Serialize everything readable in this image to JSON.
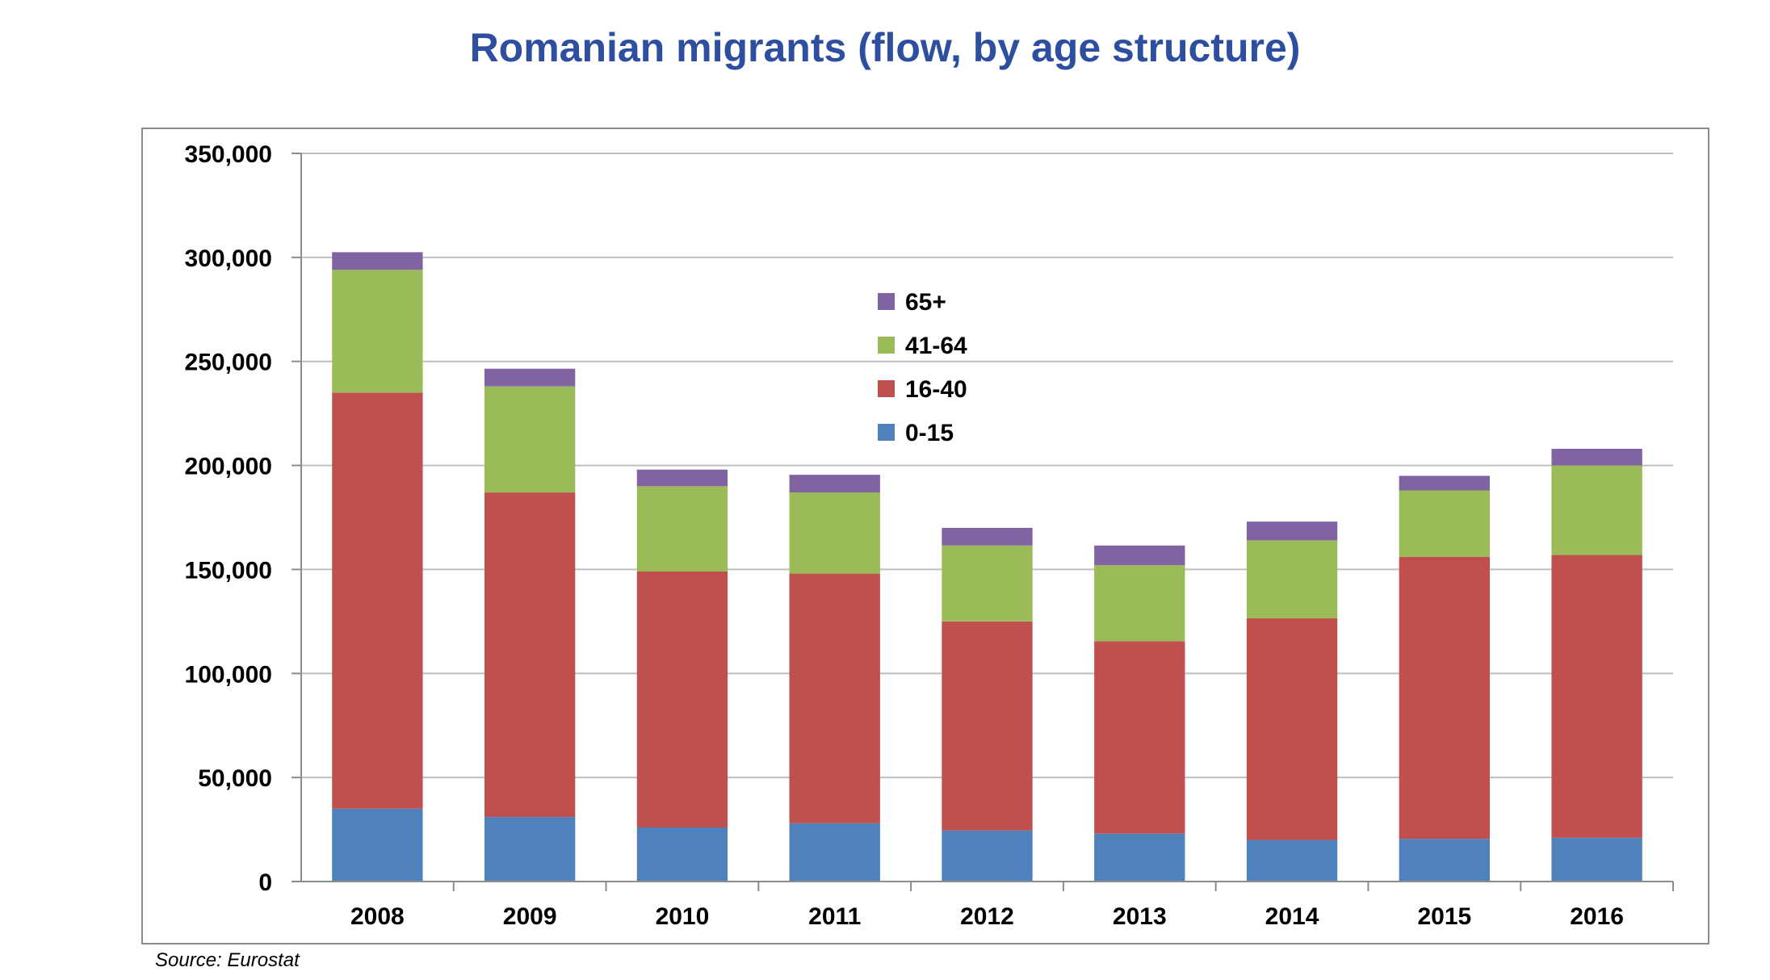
{
  "title": "Romanian migrants (flow, by age structure)",
  "source": "Source: Eurostat",
  "colors": {
    "title": "#2E4FA0",
    "0-15": "#4F81BD",
    "16-40": "#C0504D",
    "41-64": "#9BBB59",
    "65+": "#8064A2",
    "grid": "#BFBFBF",
    "axis": "#8C8C8C"
  },
  "chart_data": {
    "type": "bar",
    "stacked": true,
    "categories": [
      "2008",
      "2009",
      "2010",
      "2011",
      "2012",
      "2013",
      "2014",
      "2015",
      "2016"
    ],
    "series": [
      {
        "name": "0-15",
        "values": [
          35000,
          31000,
          26000,
          28000,
          24500,
          23000,
          20000,
          20500,
          21000
        ]
      },
      {
        "name": "16-40",
        "values": [
          200000,
          156000,
          123000,
          120000,
          100500,
          92500,
          106500,
          135500,
          136000
        ]
      },
      {
        "name": "41-64",
        "values": [
          59000,
          51000,
          41000,
          39000,
          36500,
          36500,
          37500,
          32000,
          43000
        ]
      },
      {
        "name": "65+",
        "values": [
          8500,
          8500,
          8000,
          8500,
          8500,
          9500,
          9000,
          7000,
          8000
        ]
      }
    ],
    "ylim": [
      0,
      350000
    ],
    "ytick_labels": [
      "0",
      "50,000",
      "100,000",
      "150,000",
      "200,000",
      "250,000",
      "300,000",
      "350,000"
    ],
    "ytick_values": [
      0,
      50000,
      100000,
      150000,
      200000,
      250000,
      300000,
      350000
    ],
    "legend_order": [
      "65+",
      "41-64",
      "16-40",
      "0-15"
    ],
    "legend_position": "top-center",
    "grid": true,
    "xlabel": "",
    "ylabel": ""
  }
}
